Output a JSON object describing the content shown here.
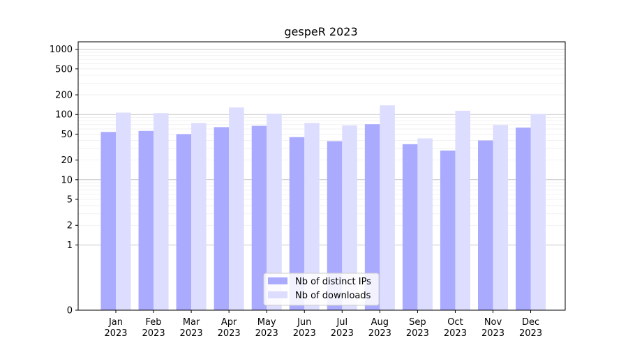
{
  "chart_data": {
    "type": "bar",
    "title": "gespeR 2023",
    "xlabel": "",
    "ylabel": "",
    "y_scale": "symlog",
    "ylim": [
      0,
      1300
    ],
    "y_ticks": [
      0,
      1,
      2,
      5,
      10,
      20,
      50,
      100,
      200,
      500,
      1000
    ],
    "categories": [
      [
        "Jan",
        "2023"
      ],
      [
        "Feb",
        "2023"
      ],
      [
        "Mar",
        "2023"
      ],
      [
        "Apr",
        "2023"
      ],
      [
        "May",
        "2023"
      ],
      [
        "Jun",
        "2023"
      ],
      [
        "Jul",
        "2023"
      ],
      [
        "Aug",
        "2023"
      ],
      [
        "Sep",
        "2023"
      ],
      [
        "Oct",
        "2023"
      ],
      [
        "Nov",
        "2023"
      ],
      [
        "Dec",
        "2023"
      ]
    ],
    "series": [
      {
        "name": "Nb of distinct IPs",
        "color": "#aaaaff",
        "values": [
          54,
          56,
          50,
          64,
          67,
          45,
          39,
          71,
          35,
          28,
          40,
          63
        ]
      },
      {
        "name": "Nb of downloads",
        "color": "#ddddff",
        "values": [
          107,
          105,
          74,
          128,
          103,
          74,
          68,
          138,
          43,
          114,
          69,
          102
        ]
      }
    ],
    "grid": true,
    "legend_position": "lower-center"
  }
}
